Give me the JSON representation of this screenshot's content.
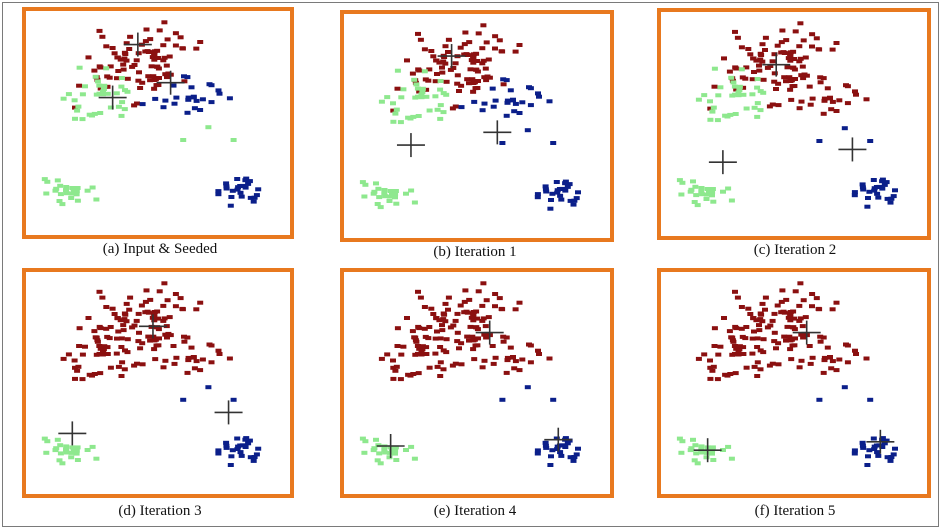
{
  "colors": {
    "cluster_red": "#8b1010",
    "cluster_blue": "#0b1f8a",
    "cluster_green": "#8ee88e",
    "frame": "#e8791f",
    "centroid": "#333333"
  },
  "chart_data": [
    {
      "type": "scatter",
      "title": "",
      "caption": "(a)  Input & Seeded",
      "grid": false,
      "xlim": [
        0,
        100
      ],
      "ylim": [
        0,
        100
      ],
      "clusters": [
        {
          "color": "#8b1010",
          "region": "top"
        },
        {
          "color": "#0b1f8a",
          "region": "upper-middle-right and bottom-right"
        },
        {
          "color": "#8ee88e",
          "region": "middle-left and bottom-left"
        }
      ],
      "centroids": [
        {
          "x": 42,
          "y": 87
        },
        {
          "x": 55,
          "y": 69
        },
        {
          "x": 32,
          "y": 62
        }
      ]
    },
    {
      "type": "scatter",
      "title": "",
      "caption": "(b)  Iteration  1",
      "grid": false,
      "xlim": [
        0,
        100
      ],
      "ylim": [
        0,
        100
      ],
      "centroids": [
        {
          "x": 40,
          "y": 83
        },
        {
          "x": 58,
          "y": 47
        },
        {
          "x": 24,
          "y": 41
        }
      ]
    },
    {
      "type": "scatter",
      "title": "",
      "caption": "(c)  Iteration 2",
      "grid": false,
      "xlim": [
        0,
        100
      ],
      "ylim": [
        0,
        100
      ],
      "centroids": [
        {
          "x": 43,
          "y": 78
        },
        {
          "x": 73,
          "y": 38
        },
        {
          "x": 22,
          "y": 32
        }
      ]
    },
    {
      "type": "scatter",
      "title": "",
      "caption": "(d) Iteration 3",
      "grid": false,
      "xlim": [
        0,
        100
      ],
      "ylim": [
        0,
        100
      ],
      "centroids": [
        {
          "x": 48,
          "y": 77
        },
        {
          "x": 78,
          "y": 36
        },
        {
          "x": 16,
          "y": 26
        }
      ]
    },
    {
      "type": "scatter",
      "title": "",
      "caption": "(e)  Iteration 4",
      "grid": false,
      "xlim": [
        0,
        100
      ],
      "ylim": [
        0,
        100
      ],
      "centroids": [
        {
          "x": 55,
          "y": 74
        },
        {
          "x": 82,
          "y": 23
        },
        {
          "x": 16,
          "y": 20
        }
      ]
    },
    {
      "type": "scatter",
      "title": "",
      "caption": "(f)  Iteration 5",
      "grid": false,
      "xlim": [
        0,
        100
      ],
      "ylim": [
        0,
        100
      ],
      "centroids": [
        {
          "x": 55,
          "y": 74
        },
        {
          "x": 84,
          "y": 22
        },
        {
          "x": 16,
          "y": 18
        }
      ]
    }
  ]
}
